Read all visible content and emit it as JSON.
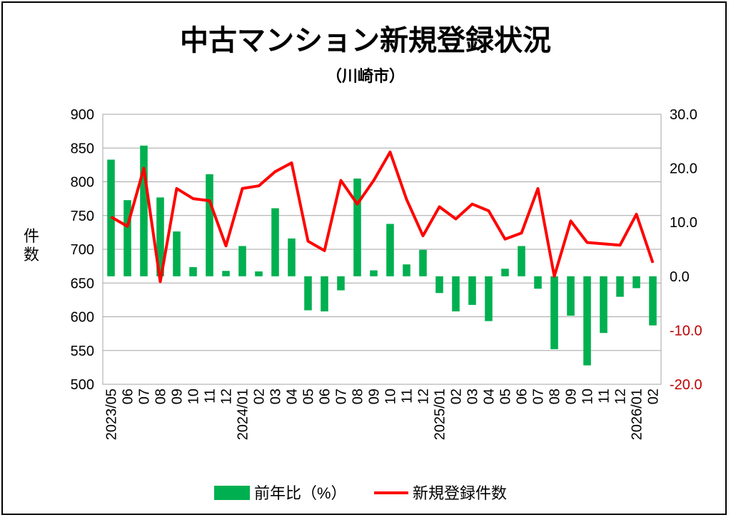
{
  "chart_data": {
    "type": "bar+line",
    "title": "中古マンション新規登録状況",
    "subtitle": "（川崎市）",
    "ylabel_left": "件数",
    "x_labels": [
      "2023/05",
      "06",
      "07",
      "08",
      "09",
      "10",
      "11",
      "12",
      "2024/01",
      "02",
      "03",
      "04",
      "05",
      "06",
      "07",
      "08",
      "09",
      "10",
      "11",
      "12",
      "2025/01",
      "02",
      "03",
      "04",
      "05",
      "06",
      "07",
      "08",
      "09",
      "10",
      "11",
      "12",
      "2026/01",
      "02"
    ],
    "y_left": {
      "min": 500,
      "max": 900,
      "step": 50,
      "ticks": [
        "900",
        "850",
        "800",
        "750",
        "700",
        "650",
        "600",
        "550",
        "500"
      ]
    },
    "y_right": {
      "min": -20,
      "max": 30,
      "step": 10,
      "ticks": [
        "30.0",
        "20.0",
        "10.0",
        "0.0",
        "-10.0",
        "-20.0"
      ]
    },
    "grid": true,
    "legend_position": "bottom",
    "series": [
      {
        "name": "前年比（%）",
        "type": "bar",
        "axis": "right",
        "color": "#00b050",
        "values": [
          21.6,
          14.1,
          24.2,
          14.6,
          8.3,
          1.7,
          18.9,
          1.0,
          5.6,
          0.9,
          12.6,
          7.0,
          -6.3,
          -6.5,
          -2.6,
          18.1,
          1.1,
          9.7,
          2.2,
          4.9,
          -3.1,
          -6.5,
          -5.3,
          -8.3,
          1.4,
          5.6,
          -2.3,
          -13.5,
          -7.3,
          -16.5,
          -10.5,
          -3.8,
          -2.2,
          -9.1
        ]
      },
      {
        "name": "新規登録件数",
        "type": "line",
        "axis": "left",
        "color": "#ff0000",
        "values": [
          748,
          734,
          820,
          652,
          790,
          775,
          772,
          705,
          790,
          794,
          815,
          828,
          712,
          698,
          802,
          767,
          802,
          844,
          774,
          720,
          763,
          745,
          767,
          757,
          715,
          724,
          790,
          660,
          742,
          710,
          708,
          706,
          752,
          680
        ]
      }
    ]
  }
}
